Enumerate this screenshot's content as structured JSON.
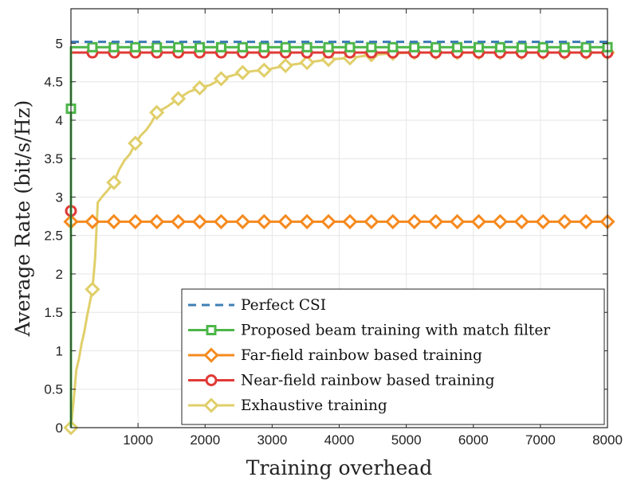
{
  "chart_data": {
    "type": "line",
    "title": "",
    "xlabel": "Training overhead",
    "ylabel": "Average Rate (bit/s/Hz)",
    "xlim": [
      0,
      8000
    ],
    "ylim": [
      0,
      5.45
    ],
    "xticks": [
      1000,
      2000,
      3000,
      4000,
      5000,
      6000,
      7000,
      8000
    ],
    "yticks": [
      0,
      0.5,
      1,
      1.5,
      2,
      2.5,
      3,
      3.5,
      4,
      4.5,
      5
    ],
    "xtick_labels": [
      "1000",
      "2000",
      "3000",
      "4000",
      "5000",
      "6000",
      "7000",
      "8000"
    ],
    "ytick_labels": [
      "0",
      "0.5",
      "1",
      "1.5",
      "2",
      "2.5",
      "3",
      "3.5",
      "4",
      "4.5",
      "5"
    ],
    "grid": true,
    "legend_position": "bottom-right",
    "series": [
      {
        "name": "Perfect CSI",
        "color": "#3f7fb5",
        "style": "dashed",
        "marker": "none",
        "x": [
          0,
          8000
        ],
        "y": [
          5.02,
          5.02
        ]
      },
      {
        "name": "Proposed beam training with match filter",
        "color": "#4cb648",
        "style": "solid",
        "marker": "square",
        "x": [
          0,
          0,
          320,
          8000
        ],
        "y": [
          0,
          4.95,
          4.95,
          4.95
        ],
        "marker_x": [
          0,
          320,
          640,
          960,
          1280,
          1600,
          1920,
          2240,
          2560,
          2880,
          3200,
          3520,
          3840,
          4160,
          4480,
          4800,
          5120,
          5440,
          5760,
          6080,
          6400,
          6720,
          7040,
          7360,
          7680,
          8000
        ],
        "marker_y": [
          4.15,
          4.95,
          4.95,
          4.95,
          4.95,
          4.95,
          4.95,
          4.95,
          4.95,
          4.95,
          4.95,
          4.95,
          4.95,
          4.95,
          4.95,
          4.95,
          4.95,
          4.95,
          4.95,
          4.95,
          4.95,
          4.95,
          4.95,
          4.95,
          4.95,
          4.95
        ]
      },
      {
        "name": "Far-field rainbow based training",
        "color": "#f58a1f",
        "style": "solid",
        "marker": "diamond",
        "x": [
          0,
          8000
        ],
        "y": [
          2.68,
          2.68
        ],
        "marker_x": [
          0,
          320,
          640,
          960,
          1280,
          1600,
          1920,
          2240,
          2560,
          2880,
          3200,
          3520,
          3840,
          4160,
          4480,
          4800,
          5120,
          5440,
          5760,
          6080,
          6400,
          6720,
          7040,
          7360,
          7680,
          8000
        ],
        "marker_y": [
          2.68,
          2.68,
          2.68,
          2.68,
          2.68,
          2.68,
          2.68,
          2.68,
          2.68,
          2.68,
          2.68,
          2.68,
          2.68,
          2.68,
          2.68,
          2.68,
          2.68,
          2.68,
          2.68,
          2.68,
          2.68,
          2.68,
          2.68,
          2.68,
          2.68,
          2.68
        ]
      },
      {
        "name": "Near-field rainbow based training",
        "color": "#e03a36",
        "style": "solid",
        "marker": "circle",
        "x": [
          0,
          0,
          320,
          8000
        ],
        "y": [
          0,
          4.88,
          4.88,
          4.88
        ],
        "marker_x": [
          0,
          320,
          640,
          960,
          1280,
          1600,
          1920,
          2240,
          2560,
          2880,
          3200,
          3520,
          3840,
          4160,
          4480,
          4800,
          5120,
          5440,
          5760,
          6080,
          6400,
          6720,
          7040,
          7360,
          7680,
          8000
        ],
        "marker_y": [
          2.82,
          4.88,
          4.88,
          4.88,
          4.88,
          4.88,
          4.88,
          4.88,
          4.88,
          4.88,
          4.88,
          4.88,
          4.88,
          4.88,
          4.88,
          4.88,
          4.88,
          4.88,
          4.88,
          4.88,
          4.88,
          4.88,
          4.88,
          4.88,
          4.88,
          4.88
        ]
      },
      {
        "name": "Exhaustive training",
        "color": "#e0cf6a",
        "style": "solid",
        "marker": "diamond",
        "x": [
          0,
          40,
          80,
          120,
          160,
          200,
          240,
          280,
          320,
          360,
          400,
          480,
          560,
          640,
          720,
          800,
          880,
          960,
          1040,
          1120,
          1200,
          1280,
          1440,
          1600,
          1760,
          1920,
          2080,
          2240,
          2400,
          2560,
          2720,
          2880,
          3040,
          3200,
          3360,
          3520,
          3680,
          3840,
          4000,
          4160,
          4320,
          4480,
          4640,
          4800,
          5120,
          5440,
          5760,
          6080,
          6400,
          6720,
          7040,
          7360,
          7680,
          8000
        ],
        "y": [
          0,
          0.35,
          0.75,
          0.9,
          1.1,
          1.25,
          1.45,
          1.62,
          1.8,
          2.2,
          2.93,
          3.02,
          3.1,
          3.19,
          3.36,
          3.48,
          3.56,
          3.7,
          3.8,
          3.87,
          3.97,
          4.1,
          4.18,
          4.28,
          4.37,
          4.42,
          4.46,
          4.54,
          4.58,
          4.62,
          4.64,
          4.65,
          4.68,
          4.71,
          4.73,
          4.75,
          4.77,
          4.79,
          4.8,
          4.81,
          4.83,
          4.85,
          4.86,
          4.87,
          4.88,
          4.88,
          4.88,
          4.88,
          4.88,
          4.88,
          4.88,
          4.88,
          4.88,
          4.88
        ],
        "marker_x": [
          0,
          320,
          640,
          960,
          1280,
          1600,
          1920,
          2240,
          2560,
          2880,
          3200,
          3520,
          3840,
          4160,
          4480,
          4800,
          5120,
          5440,
          5760,
          6080,
          6400,
          6720,
          7040,
          7360,
          7680,
          8000
        ],
        "marker_y": [
          0,
          1.8,
          3.19,
          3.7,
          4.1,
          4.28,
          4.42,
          4.54,
          4.62,
          4.65,
          4.71,
          4.75,
          4.79,
          4.81,
          4.85,
          4.87,
          4.88,
          4.88,
          4.88,
          4.88,
          4.88,
          4.88,
          4.88,
          4.88,
          4.88,
          4.88
        ]
      }
    ]
  }
}
